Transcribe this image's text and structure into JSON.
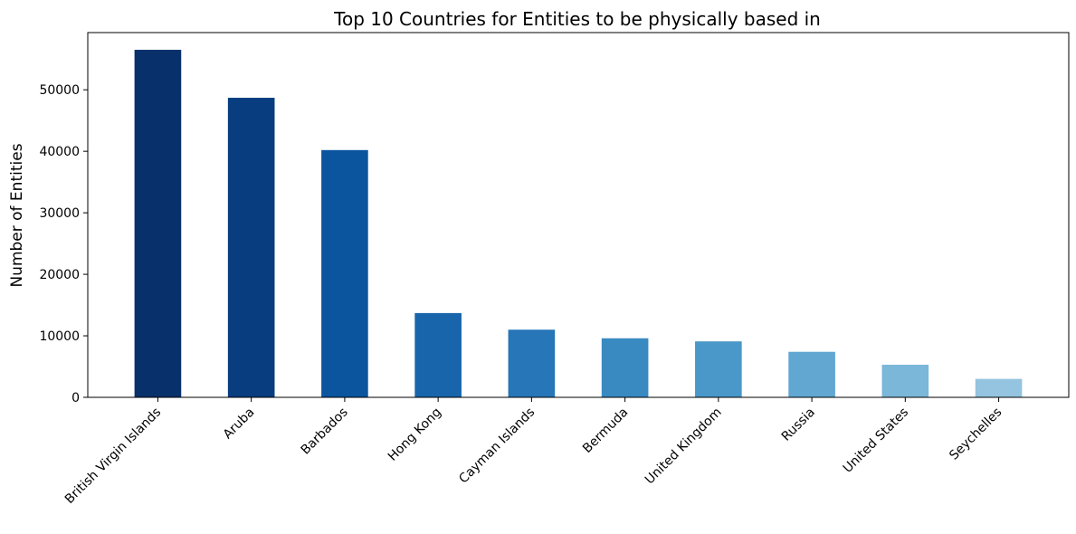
{
  "chart_data": {
    "type": "bar",
    "title": "Top 10 Countries for Entities to be physically based in",
    "xlabel": "",
    "ylabel": "Number of Entities",
    "categories": [
      "British Virgin Islands",
      "Aruba",
      "Barbados",
      "Hong Kong",
      "Cayman Islands",
      "Bermuda",
      "United Kingdom",
      "Russia",
      "United States",
      "Seychelles"
    ],
    "values": [
      56500,
      48700,
      40200,
      13700,
      11000,
      9600,
      9100,
      7400,
      5300,
      3000
    ],
    "colors": [
      "#08306b",
      "#083d7f",
      "#0b559f",
      "#1865ac",
      "#2776b8",
      "#3a8ac2",
      "#4a98c9",
      "#61a7d2",
      "#7bb7d9",
      "#94c4df"
    ],
    "ylim": [
      0,
      59300
    ],
    "yticks": [
      0,
      10000,
      20000,
      30000,
      40000,
      50000
    ],
    "grid": false,
    "legend": "none"
  }
}
